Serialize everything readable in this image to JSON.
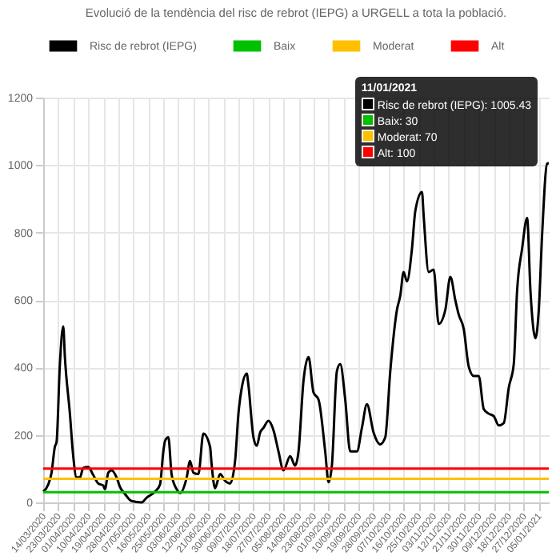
{
  "chart_data": {
    "type": "line",
    "title": "Evolució de la tendència del risc de rebrot (IEPG) a URGELL a tota la població.",
    "legend": "top",
    "grid": true,
    "xlim": [
      "2020-03-14",
      "2021-01-11"
    ],
    "xticks": [
      {
        "value": "2020-03-14",
        "label": "14/03/2020"
      },
      {
        "value": "2020-03-23",
        "label": "23/03/2020"
      },
      {
        "value": "2020-04-01",
        "label": "01/04/2020"
      },
      {
        "value": "2020-04-10",
        "label": "10/04/2020"
      },
      {
        "value": "2020-04-19",
        "label": "19/04/2020"
      },
      {
        "value": "2020-04-28",
        "label": "28/04/2020"
      },
      {
        "value": "2020-05-07",
        "label": "07/05/2020"
      },
      {
        "value": "2020-05-16",
        "label": "16/05/2020"
      },
      {
        "value": "2020-05-25",
        "label": "25/05/2020"
      },
      {
        "value": "2020-06-03",
        "label": "03/06/2020"
      },
      {
        "value": "2020-06-12",
        "label": "12/06/2020"
      },
      {
        "value": "2020-06-21",
        "label": "21/06/2020"
      },
      {
        "value": "2020-06-30",
        "label": "30/06/2020"
      },
      {
        "value": "2020-07-09",
        "label": "09/07/2020"
      },
      {
        "value": "2020-07-18",
        "label": "18/07/2020"
      },
      {
        "value": "2020-07-27",
        "label": "27/07/2020"
      },
      {
        "value": "2020-08-05",
        "label": "05/08/2020"
      },
      {
        "value": "2020-08-14",
        "label": "14/08/2020"
      },
      {
        "value": "2020-08-23",
        "label": "23/08/2020"
      },
      {
        "value": "2020-09-01",
        "label": "01/09/2020"
      },
      {
        "value": "2020-09-10",
        "label": "10/09/2020"
      },
      {
        "value": "2020-09-19",
        "label": "19/09/2020"
      },
      {
        "value": "2020-09-28",
        "label": "28/09/2020"
      },
      {
        "value": "2020-10-07",
        "label": "07/10/2020"
      },
      {
        "value": "2020-10-16",
        "label": "16/10/2020"
      },
      {
        "value": "2020-10-25",
        "label": "25/10/2020"
      },
      {
        "value": "2020-11-03",
        "label": "03/11/2020"
      },
      {
        "value": "2020-11-12",
        "label": "12/11/2020"
      },
      {
        "value": "2020-11-21",
        "label": "21/11/2020"
      },
      {
        "value": "2020-11-30",
        "label": "30/11/2020"
      },
      {
        "value": "2020-12-09",
        "label": "09/12/2020"
      },
      {
        "value": "2020-12-18",
        "label": "18/12/2020"
      },
      {
        "value": "2020-12-27",
        "label": "27/12/2020"
      },
      {
        "value": "2021-01-05",
        "label": "05/01/2021"
      }
    ],
    "ylim": [
      0,
      1200
    ],
    "yticks": [
      0,
      200,
      400,
      600,
      800,
      1000,
      1200
    ],
    "series": [
      {
        "name": "Risc de rebrot (IEPG)",
        "color": "#000000",
        "x": [
          "2020-03-14",
          "2020-03-17",
          "2020-03-19",
          "2020-03-21",
          "2020-03-22",
          "2020-03-24",
          "2020-03-26",
          "2020-03-27",
          "2020-03-30",
          "2020-04-01",
          "2020-04-03",
          "2020-04-05",
          "2020-04-07",
          "2020-04-10",
          "2020-04-13",
          "2020-04-16",
          "2020-04-19",
          "2020-04-20",
          "2020-04-22",
          "2020-04-24",
          "2020-04-27",
          "2020-04-29",
          "2020-05-02",
          "2020-05-06",
          "2020-05-12",
          "2020-05-15",
          "2020-05-20",
          "2020-05-23",
          "2020-05-25",
          "2020-05-26",
          "2020-05-28",
          "2020-05-30",
          "2020-06-02",
          "2020-06-04",
          "2020-06-08",
          "2020-06-10",
          "2020-06-12",
          "2020-06-15",
          "2020-06-18",
          "2020-06-22",
          "2020-06-23",
          "2020-06-25",
          "2020-06-28",
          "2020-07-01",
          "2020-07-04",
          "2020-07-07",
          "2020-07-09",
          "2020-07-11",
          "2020-07-14",
          "2020-07-15",
          "2020-07-18",
          "2020-07-20",
          "2020-07-22",
          "2020-07-24",
          "2020-07-27",
          "2020-07-30",
          "2020-08-02",
          "2020-08-05",
          "2020-08-09",
          "2020-08-12",
          "2020-08-14",
          "2020-08-17",
          "2020-08-20",
          "2020-08-23",
          "2020-08-26",
          "2020-08-30",
          "2020-09-01",
          "2020-09-03",
          "2020-09-06",
          "2020-09-08",
          "2020-09-11",
          "2020-09-14",
          "2020-09-18",
          "2020-09-21",
          "2020-09-24",
          "2020-09-28",
          "2020-10-02",
          "2020-10-05",
          "2020-10-08",
          "2020-10-12",
          "2020-10-14",
          "2020-10-16",
          "2020-10-18",
          "2020-10-21",
          "2020-10-23",
          "2020-10-27",
          "2020-10-28",
          "2020-10-31",
          "2020-11-03",
          "2020-11-06",
          "2020-11-10",
          "2020-11-13",
          "2020-11-16",
          "2020-11-18",
          "2020-11-21",
          "2020-11-24",
          "2020-11-27",
          "2020-11-30",
          "2020-12-03",
          "2020-12-06",
          "2020-12-09",
          "2020-12-12",
          "2020-12-15",
          "2020-12-18",
          "2020-12-21",
          "2020-12-23",
          "2020-12-26",
          "2020-12-29",
          "2020-12-31",
          "2021-01-03",
          "2021-01-05",
          "2021-01-07",
          "2021-01-10",
          "2021-01-11"
        ],
        "values": [
          32,
          53,
          88,
          165,
          179,
          410,
          522,
          431,
          263,
          137,
          74,
          74,
          102,
          105,
          81,
          56,
          50,
          39,
          88,
          95,
          74,
          46,
          25,
          4,
          0,
          14,
          32,
          53,
          151,
          182,
          193,
          81,
          39,
          28,
          74,
          123,
          88,
          84,
          204,
          165,
          109,
          42,
          84,
          64,
          56,
          123,
          263,
          340,
          382,
          347,
          193,
          168,
          207,
          221,
          242,
          214,
          151,
          95,
          137,
          109,
          151,
          361,
          431,
          326,
          305,
          151,
          60,
          109,
          389,
          410,
          305,
          151,
          151,
          221,
          291,
          207,
          172,
          193,
          389,
          571,
          613,
          683,
          655,
          752,
          864,
          920,
          850,
          683,
          690,
          529,
          571,
          669,
          599,
          557,
          515,
          403,
          375,
          375,
          277,
          263,
          256,
          228,
          235,
          340,
          410,
          627,
          752,
          843,
          627,
          487,
          571,
          794,
          1004,
          1005.43
        ]
      },
      {
        "name": "Baix",
        "color": "#00c000",
        "x": [
          "2020-03-14",
          "2021-01-11"
        ],
        "values": [
          30,
          30
        ]
      },
      {
        "name": "Moderat",
        "color": "#ffc000",
        "x": [
          "2020-03-14",
          "2021-01-11"
        ],
        "values": [
          70,
          70
        ]
      },
      {
        "name": "Alt",
        "color": "#ff0000",
        "x": [
          "2020-03-14",
          "2021-01-11"
        ],
        "values": [
          100,
          100
        ]
      }
    ],
    "annotations": [
      "11/01/2021",
      "Risc de rebrot (IEPG): 1005.43",
      "Baix: 30",
      "Moderat: 70",
      "Alt: 100"
    ]
  }
}
